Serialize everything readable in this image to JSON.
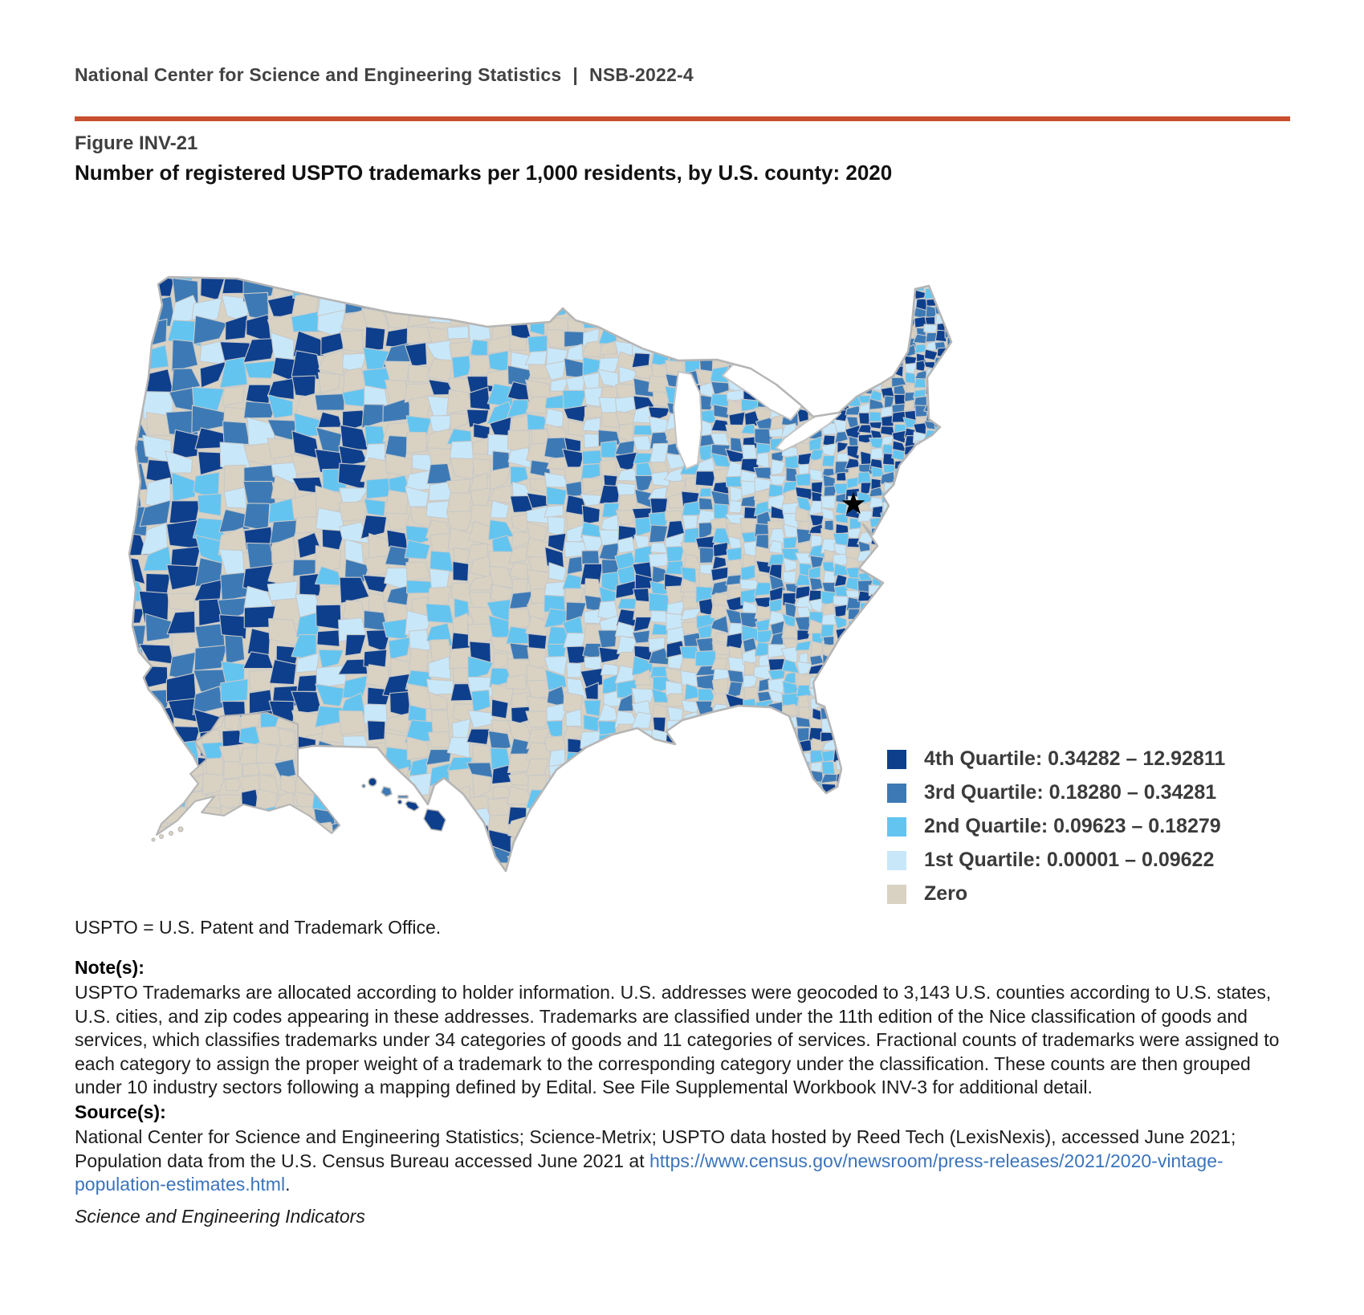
{
  "header": {
    "org": "National Center for Science and Engineering Statistics",
    "separator": "|",
    "report_id": "NSB-2022-4"
  },
  "figure": {
    "label": "Figure INV-21",
    "title": "Number of registered USPTO trademarks per 1,000 residents, by U.S. county: 2020"
  },
  "legend": {
    "items": [
      {
        "label": "4th Quartile: 0.34282 – 12.92811",
        "color": "#0E3F8C"
      },
      {
        "label": "3rd Quartile: 0.18280 – 0.34281",
        "color": "#3D7AB5"
      },
      {
        "label": "2nd Quartile: 0.09623 – 0.18279",
        "color": "#63C4F0"
      },
      {
        "label": "1st Quartile: 0.00001 – 0.09622",
        "color": "#C8E8FA"
      },
      {
        "label": "Zero",
        "color": "#D9D2C2"
      }
    ]
  },
  "abbreviation": "USPTO = U.S. Patent and Trademark Office.",
  "notes": {
    "heading": "Note(s):",
    "text": "USPTO Trademarks are allocated according to holder information. U.S. addresses were geocoded to 3,143 U.S. counties according to U.S. states, U.S. cities, and zip codes appearing in these addresses. Trademarks are classified under the 11th edition of the Nice classification of goods and services, which classifies trademarks under 34 categories of goods and 11 categories of services. Fractional counts of trademarks were assigned to each category to assign the proper weight of a trademark to the corresponding category under the classification. These counts are then grouped under 10 industry sectors following a mapping defined by Edital. See File Supplemental Workbook INV-3 for additional detail."
  },
  "sources": {
    "heading": "Source(s):",
    "text_before_link": "National Center for Science and Engineering Statistics; Science-Metrix; USPTO data hosted by Reed Tech (LexisNexis), accessed June 2021; Population data from the U.S. Census Bureau accessed June 2021 at ",
    "link": "https://www.census.gov/newsroom/press-releases/2021/2020-vintage-population-estimates.html",
    "text_after_link": "."
  },
  "footer": {
    "text": "Science and Engineering Indicators"
  },
  "colors": {
    "accent_rule": "#C94F2E",
    "link": "#3B74BC",
    "county_border": "#C8C8C8",
    "coast_outline": "#B5B5B5"
  },
  "chart_data": {
    "type": "choropleth",
    "title": "Number of registered USPTO trademarks per 1,000 residents, by U.S. county: 2020",
    "geography": "U.S. counties (including Alaska and Hawaii)",
    "year": "2020",
    "unit": "registered USPTO trademarks per 1,000 residents",
    "counties_geocoded": "3,143",
    "legend_position": "bottom-right",
    "marker": {
      "symbol": "black star",
      "represents": "Washington, DC area"
    },
    "classes": [
      {
        "quartile": "4th Quartile",
        "min": 0.34282,
        "max": 12.92811,
        "color": "#0E3F8C"
      },
      {
        "quartile": "3rd Quartile",
        "min": 0.1828,
        "max": 0.34281,
        "color": "#3D7AB5"
      },
      {
        "quartile": "2nd Quartile",
        "min": 0.09623,
        "max": 0.18279,
        "color": "#63C4F0"
      },
      {
        "quartile": "1st Quartile",
        "min": 1e-05,
        "max": 0.09622,
        "color": "#C8E8FA"
      },
      {
        "quartile": "Zero",
        "min": 0,
        "max": 0,
        "color": "#D9D2C2"
      }
    ]
  }
}
